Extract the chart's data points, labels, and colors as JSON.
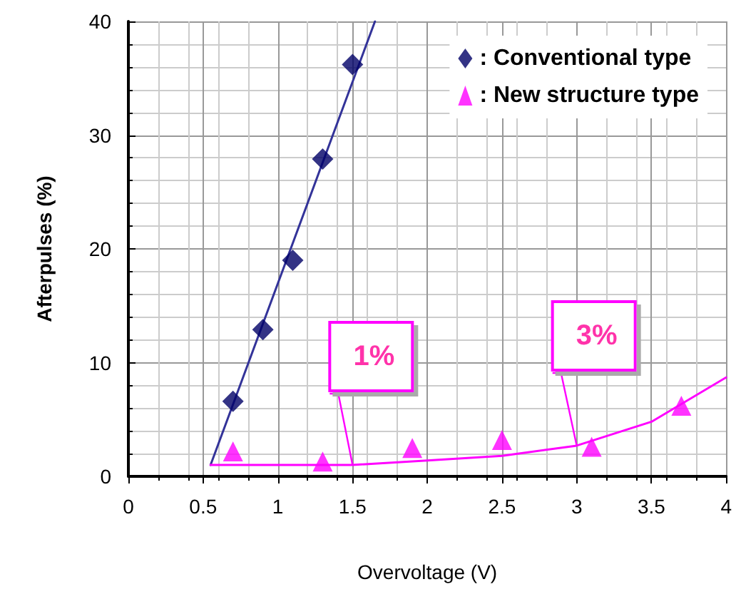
{
  "chart_data": {
    "type": "scatter",
    "xlabel": "Overvoltage (V)",
    "ylabel": "Afterpulses (%)",
    "xlim": [
      0,
      4
    ],
    "xticks": [
      0,
      0.5,
      1,
      1.5,
      2,
      2.5,
      3,
      3.5,
      4
    ],
    "ylim": [
      0,
      40
    ],
    "yticks": [
      0,
      10,
      20,
      30,
      40
    ],
    "grid": true,
    "legend": "top right",
    "series": [
      {
        "name": ": Conventional type",
        "marker": "diamond",
        "color": "#000066",
        "x": [
          0.7,
          0.9,
          1.1,
          1.3,
          1.5
        ],
        "values": [
          6.6,
          12.9,
          19.0,
          27.9,
          36.2
        ]
      },
      {
        "name": ": New structure type",
        "marker": "triangle",
        "color": "#ff00ff",
        "x": [
          0.7,
          1.3,
          1.9,
          2.5,
          3.1,
          3.7
        ],
        "values": [
          2.2,
          1.3,
          2.5,
          3.2,
          2.6,
          6.2
        ]
      },
      {
        "type": "line",
        "marker": "none",
        "line_style": "solid",
        "color": "#333399",
        "x": [
          0.55,
          1.65
        ],
        "values": [
          1,
          40
        ]
      },
      {
        "type": "line",
        "marker": "none",
        "line_style": "solid",
        "color": "#ff00ff",
        "x": [
          0.55,
          1.0,
          1.5,
          2.0,
          2.5,
          3.0,
          3.5,
          4.0
        ],
        "values": [
          1.0,
          1.0,
          1.0,
          1.4,
          1.8,
          2.7,
          4.8,
          8.7
        ]
      }
    ],
    "annotations": [
      {
        "text": "1%",
        "x": 1.5,
        "y": 1
      },
      {
        "text": "3%",
        "x": 3.0,
        "y": 2.7
      }
    ]
  }
}
